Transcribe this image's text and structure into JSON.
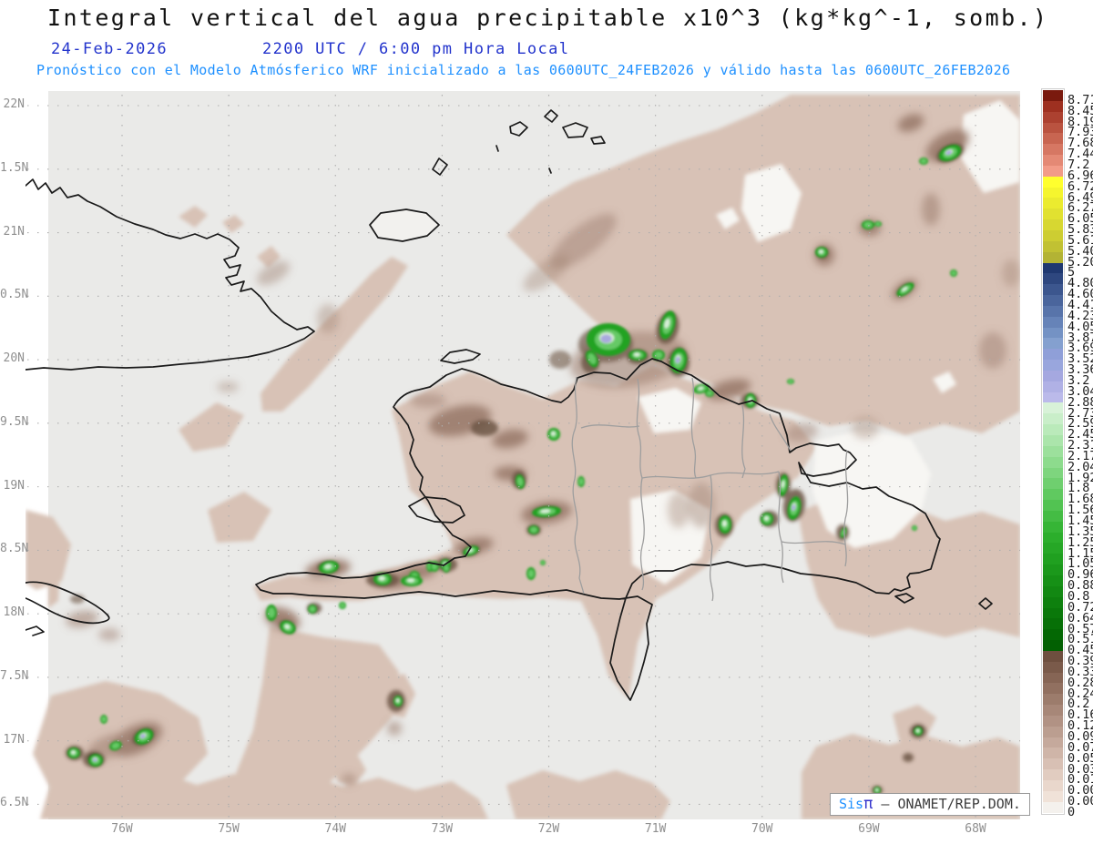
{
  "header": {
    "title": "Integral vertical del agua precipitable x10^3 (kg*kg^-1, somb.)",
    "date": "24-Feb-2026",
    "time": "2200 UTC / 6:00 pm Hora Local",
    "forecast": "Pronóstico con el Modelo Atmósferico WRF inicializado a las 0600UTC_24FEB2026 y válido hasta las  0600UTC_26FEB2026"
  },
  "axes": {
    "lat_labels": [
      "22N",
      "1.5N",
      "21N",
      "0.5N",
      "20N",
      "9.5N",
      "19N",
      "8.5N",
      "18N",
      "7.5N",
      "17N",
      "6.5N"
    ],
    "lon_labels": [
      "76W",
      "75W",
      "74W",
      "73W",
      "72W",
      "71W",
      "70W",
      "69W",
      "68W"
    ]
  },
  "colorbar": {
    "values": [
      "8.712",
      "8.45",
      "8.192",
      "7.938",
      "7.688",
      "7.442",
      "7.2",
      "6.962",
      "6.728",
      "6.498",
      "6.272",
      "6.05",
      "5.832",
      "5.618",
      "5.408",
      "5.202",
      "5",
      "4.802",
      "4.608",
      "4.418",
      "4.232",
      "4.05",
      "3.872",
      "3.698",
      "3.528",
      "3.362",
      "3.2",
      "3.042",
      "2.888",
      "2.738",
      "2.592",
      "2.45",
      "2.312",
      "2.178",
      "2.048",
      "1.922",
      "1.8",
      "1.682",
      "1.568",
      "1.458",
      "1.352",
      "1.25",
      "1.152",
      "1.058",
      "0.968",
      "0.882",
      "0.8",
      "0.722",
      "0.648",
      "0.578",
      "0.512",
      "0.45",
      "0.392",
      "0.338",
      "0.288",
      "0.242",
      "0.2",
      "0.162",
      "0.128",
      "0.098",
      "0.072",
      "0.05",
      "0.032",
      "0.018",
      "0.008",
      "0.002",
      "0"
    ],
    "colors": [
      "#7A1A0E",
      "#9E3020",
      "#AC4130",
      "#BA5340",
      "#C86551",
      "#D67763",
      "#E48975",
      "#F29B88",
      "#FFFF2E",
      "#F5F52E",
      "#EBEB2F",
      "#E1E130",
      "#D7D731",
      "#CDCD32",
      "#C1C133",
      "#B3B334",
      "#1F3870",
      "#2E477F",
      "#3C568E",
      "#4A659C",
      "#5874AA",
      "#6683B8",
      "#7492C4",
      "#84A0CF",
      "#8F9FD8",
      "#99A6DD",
      "#A5A8E0",
      "#B0B1E5",
      "#BBBAEA",
      "#D8F2D8",
      "#C9EEC9",
      "#BAEABA",
      "#ABE5AB",
      "#9CE09C",
      "#8DDB8D",
      "#7ED57E",
      "#6FCF6F",
      "#60C960",
      "#52C352",
      "#44BC44",
      "#36B536",
      "#2CAE2C",
      "#26A726",
      "#20A020",
      "#1B981B",
      "#169016",
      "#128812",
      "#0E800E",
      "#0A780A",
      "#077007",
      "#046804",
      "#026002",
      "#6E4F3F",
      "#7A5A4A",
      "#866555",
      "#917060",
      "#9C7C6C",
      "#A78778",
      "#B19284",
      "#BB9E90",
      "#C5A99C",
      "#CFB5A8",
      "#D8C0B4",
      "#E1CCC0",
      "#E9D7CC",
      "#F0E2D8",
      "#F4F1ED"
    ]
  },
  "attribution": {
    "sis": "Sis",
    "pi": "π",
    "dash": " – ",
    "org": "ONAMET/REP.DOM."
  },
  "colors": {
    "title_black": "#111111",
    "date_blue": "#2233cc",
    "forecast_azure": "#1e90ff",
    "map_background_grey": "#EAEAE8",
    "field_tan": "#D8C2B6",
    "field_white": "#F7F6F3",
    "smudge_medium_brown": "#A08273",
    "smudge_dark_brown": "#6C5444",
    "smudge_near_black": "#40322A",
    "green_outer": "#22A322",
    "green_inner": "#66C966",
    "green_core_light": "#D9EFD9",
    "green_core_lavender": "#A9A9DC",
    "coastline": "#1a1a1a",
    "admin_border_grey": "#9e9e9e",
    "gridline_grey": "#ADADAD",
    "axis_label_grey": "#8f8f8f"
  },
  "chart_data": {
    "type": "heatmap",
    "title": "Integral vertical del agua precipitable x10^3 (kg*kg^-1, somb.)",
    "region": "Hispaniola / eastern Cuba / Jamaica (Caribbean)",
    "lat_range_deg_n": [
      16.5,
      22
    ],
    "lon_range_deg_w": [
      76.9,
      67.5
    ],
    "grid": "dotted, 0.5 deg latitude x 1 deg longitude labels",
    "legend_position": "right vertical colorbar",
    "scale_levels": [
      0,
      0.002,
      0.008,
      0.018,
      0.032,
      0.05,
      0.072,
      0.098,
      0.128,
      0.162,
      0.2,
      0.242,
      0.288,
      0.338,
      0.392,
      0.45,
      0.512,
      0.578,
      0.648,
      0.722,
      0.8,
      0.882,
      0.968,
      1.058,
      1.152,
      1.25,
      1.352,
      1.458,
      1.568,
      1.682,
      1.8,
      1.922,
      2.048,
      2.178,
      2.312,
      2.45,
      2.592,
      2.738,
      2.888,
      3.042,
      3.2,
      3.362,
      3.528,
      3.698,
      3.872,
      4.05,
      4.232,
      4.418,
      4.608,
      4.802,
      5,
      5.202,
      5.408,
      5.618,
      5.832,
      6.05,
      6.272,
      6.498,
      6.728,
      6.962,
      7.2,
      7.442,
      7.688,
      7.938,
      8.192,
      8.45,
      8.712
    ],
    "field_description": "Low values (tan/brown 0.002-0.45) cover most of the domain; local maxima (greens 0.45-2.9 with lavender cores near 3) appear north of Hispaniola, over Haiti's peninsulas, eastern Dominican mountains, northeast of the domain and southwest near 17N 76W"
  }
}
